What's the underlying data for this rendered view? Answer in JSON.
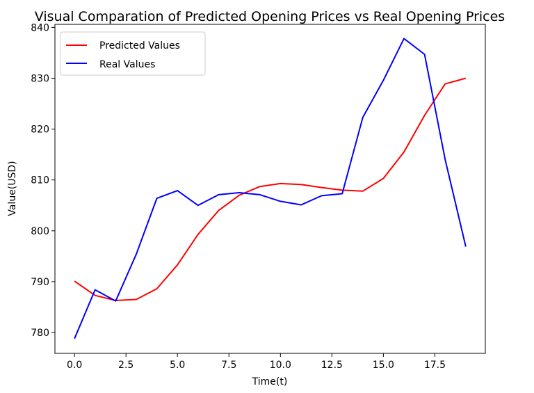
{
  "chart_data": {
    "type": "line",
    "title": "Visual Comparation of Predicted Opening Prices vs Real Opening Prices",
    "xlabel": "Time(t)",
    "ylabel": "Value(USD)",
    "xlim": [
      -0.95,
      19.95
    ],
    "ylim": [
      775.9,
      840.6
    ],
    "xticks": [
      0.0,
      2.5,
      5.0,
      7.5,
      10.0,
      12.5,
      15.0,
      17.5
    ],
    "xtick_labels": [
      "0.0",
      "2.5",
      "5.0",
      "7.5",
      "10.0",
      "12.5",
      "15.0",
      "17.5"
    ],
    "yticks": [
      780,
      790,
      800,
      810,
      820,
      830,
      840
    ],
    "ytick_labels": [
      "780",
      "790",
      "800",
      "810",
      "820",
      "830",
      "840"
    ],
    "grid": false,
    "legend_position": "top-left",
    "x": [
      0,
      1,
      2,
      3,
      4,
      5,
      6,
      7,
      8,
      9,
      10,
      11,
      12,
      13,
      14,
      15,
      16,
      17,
      18,
      19
    ],
    "series": [
      {
        "name": "Predicted Values",
        "color": "#ff0000",
        "values": [
          790.1,
          787.3,
          786.3,
          786.5,
          788.6,
          793.3,
          799.3,
          804.0,
          807.0,
          808.7,
          809.3,
          809.1,
          808.5,
          808.0,
          807.8,
          810.3,
          815.5,
          822.7,
          828.9,
          830.0
        ]
      },
      {
        "name": "Real Values",
        "color": "#0000ff",
        "values": [
          778.8,
          788.4,
          786.2,
          795.4,
          806.4,
          807.9,
          805.0,
          807.1,
          807.5,
          807.1,
          805.8,
          805.1,
          806.9,
          807.3,
          822.3,
          829.6,
          837.8,
          834.7,
          814.0,
          796.9
        ]
      }
    ]
  }
}
